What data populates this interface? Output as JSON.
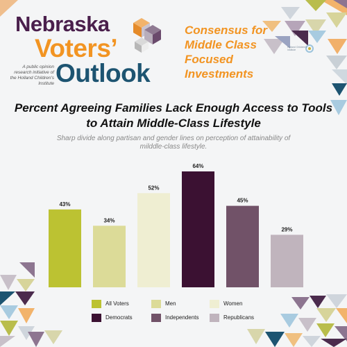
{
  "header": {
    "brand_line1": "Nebraska",
    "brand_line2": "Voters’",
    "brand_line3": "Outlook",
    "tagline": "A public opinion research initiative of the Holland Children's Institute",
    "campaign": "Consensus for Middle Class Focused Investments",
    "partner_logo_text": "Holland Children's Institute"
  },
  "chart_data": {
    "type": "bar",
    "title": "Percent Agreeing Families Lack Enough Access to Tools to Attain Middle-Class Lifestyle",
    "subtitle": "Sharp divide along partisan and gender lines on perception of attainability of milddle-class lifestyle.",
    "categories": [
      "All Voters",
      "Men",
      "Women",
      "Democrats",
      "Independents",
      "Republicans"
    ],
    "values": [
      43,
      34,
      52,
      64,
      45,
      29
    ],
    "value_labels": [
      "43%",
      "34%",
      "52%",
      "64%",
      "45%",
      "29%"
    ],
    "colors": [
      "#bcc232",
      "#dcdb98",
      "#efeed2",
      "#3b1132",
      "#715268",
      "#c0b4bd"
    ],
    "ylim": [
      0,
      64
    ],
    "grid": false,
    "legend": "bottom"
  },
  "colors": {
    "purple": "#4a1f4c",
    "orange": "#f29422",
    "navy": "#1d5471",
    "background": "#f4f5f6"
  }
}
